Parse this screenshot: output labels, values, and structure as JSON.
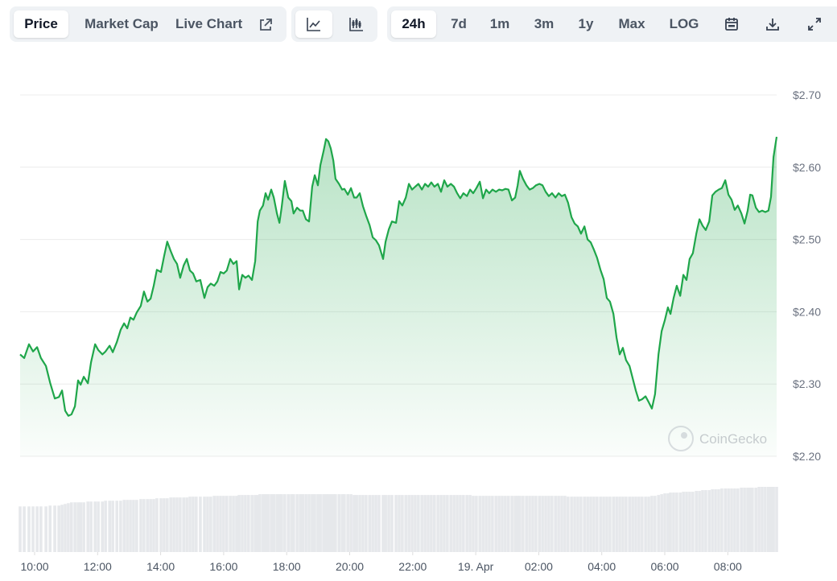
{
  "toolbar": {
    "views": [
      "Price",
      "Market Cap",
      "Live Chart"
    ],
    "ranges": [
      "24h",
      "7d",
      "1m",
      "3m",
      "1y",
      "Max",
      "LOG"
    ]
  },
  "chart_data": {
    "type": "line",
    "color": "#1fa64a",
    "grid": true,
    "watermark": "CoinGecko",
    "xlim": [
      9.54,
      33.55
    ],
    "xticks": [
      {
        "value": 10,
        "label": "10:00"
      },
      {
        "value": 12,
        "label": "12:00"
      },
      {
        "value": 14,
        "label": "14:00"
      },
      {
        "value": 16,
        "label": "16:00"
      },
      {
        "value": 18,
        "label": "18:00"
      },
      {
        "value": 20,
        "label": "20:00"
      },
      {
        "value": 22,
        "label": "22:00"
      },
      {
        "value": 24,
        "label": "19. Apr"
      },
      {
        "value": 26,
        "label": "02:00"
      },
      {
        "value": 28,
        "label": "04:00"
      },
      {
        "value": 30,
        "label": "06:00"
      },
      {
        "value": 32,
        "label": "08:00"
      }
    ],
    "ylim": [
      2.2,
      2.7
    ],
    "yticks": [
      {
        "value": 2.2,
        "label": "$2.20"
      },
      {
        "value": 2.3,
        "label": "$2.30"
      },
      {
        "value": 2.4,
        "label": "$2.40"
      },
      {
        "value": 2.5,
        "label": "$2.50"
      },
      {
        "value": 2.6,
        "label": "$2.60"
      },
      {
        "value": 2.7,
        "label": "$2.70"
      }
    ],
    "x": [
      9.54,
      9.67,
      9.82,
      9.95,
      10.08,
      10.2,
      10.36,
      10.49,
      10.64,
      10.77,
      10.87,
      10.97,
      11.07,
      11.17,
      11.28,
      11.38,
      11.46,
      11.56,
      11.69,
      11.79,
      11.92,
      12.02,
      12.15,
      12.25,
      12.38,
      12.48,
      12.61,
      12.73,
      12.84,
      12.94,
      13.04,
      13.14,
      13.24,
      13.37,
      13.47,
      13.58,
      13.68,
      13.78,
      13.88,
      14.01,
      14.11,
      14.21,
      14.32,
      14.42,
      14.52,
      14.62,
      14.73,
      14.83,
      14.93,
      15.03,
      15.13,
      15.26,
      15.39,
      15.49,
      15.59,
      15.7,
      15.8,
      15.9,
      16.0,
      16.1,
      16.21,
      16.31,
      16.41,
      16.49,
      16.59,
      16.69,
      16.79,
      16.9,
      17.0,
      17.08,
      17.15,
      17.25,
      17.33,
      17.41,
      17.51,
      17.59,
      17.69,
      17.77,
      17.84,
      17.94,
      18.05,
      18.15,
      18.22,
      18.33,
      18.43,
      18.51,
      18.61,
      18.71,
      18.81,
      18.89,
      18.99,
      19.07,
      19.17,
      19.25,
      19.32,
      19.4,
      19.48,
      19.55,
      19.66,
      19.76,
      19.83,
      19.94,
      20.04,
      20.14,
      20.22,
      20.32,
      20.42,
      20.52,
      20.63,
      20.73,
      20.83,
      20.93,
      21.06,
      21.14,
      21.24,
      21.34,
      21.47,
      21.57,
      21.67,
      21.78,
      21.88,
      21.98,
      22.08,
      22.18,
      22.29,
      22.39,
      22.49,
      22.59,
      22.69,
      22.8,
      22.9,
      23.0,
      23.1,
      23.21,
      23.31,
      23.41,
      23.51,
      23.61,
      23.72,
      23.82,
      23.92,
      24.02,
      24.13,
      24.23,
      24.33,
      24.43,
      24.53,
      24.64,
      24.74,
      24.84,
      24.94,
      25.04,
      25.15,
      25.25,
      25.33,
      25.4,
      25.5,
      25.61,
      25.71,
      25.81,
      25.91,
      26.02,
      26.12,
      26.22,
      26.32,
      26.42,
      26.53,
      26.63,
      26.73,
      26.83,
      26.93,
      27.04,
      27.14,
      27.24,
      27.34,
      27.45,
      27.55,
      27.65,
      27.75,
      27.85,
      27.96,
      28.06,
      28.16,
      28.26,
      28.37,
      28.47,
      28.57,
      28.67,
      28.77,
      28.88,
      28.98,
      29.08,
      29.18,
      29.28,
      29.39,
      29.49,
      29.59,
      29.69,
      29.8,
      29.9,
      30.0,
      30.1,
      30.18,
      30.28,
      30.38,
      30.49,
      30.59,
      30.69,
      30.79,
      30.89,
      31.0,
      31.1,
      31.2,
      31.3,
      31.41,
      31.51,
      31.61,
      31.71,
      31.81,
      31.92,
      32.02,
      32.12,
      32.22,
      32.32,
      32.43,
      32.53,
      32.63,
      32.71,
      32.78,
      32.89,
      32.99,
      33.09,
      33.19,
      33.29,
      33.37,
      33.45,
      33.55
    ],
    "values": [
      2.341,
      2.336,
      2.355,
      2.345,
      2.351,
      2.336,
      2.325,
      2.302,
      2.28,
      2.282,
      2.291,
      2.263,
      2.256,
      2.258,
      2.269,
      2.305,
      2.299,
      2.31,
      2.301,
      2.33,
      2.355,
      2.347,
      2.341,
      2.345,
      2.353,
      2.344,
      2.358,
      2.375,
      2.384,
      2.377,
      2.392,
      2.389,
      2.399,
      2.408,
      2.428,
      2.414,
      2.418,
      2.436,
      2.458,
      2.455,
      2.477,
      2.497,
      2.484,
      2.473,
      2.466,
      2.447,
      2.464,
      2.473,
      2.457,
      2.453,
      2.442,
      2.444,
      2.419,
      2.434,
      2.439,
      2.436,
      2.442,
      2.455,
      2.453,
      2.457,
      2.473,
      2.466,
      2.47,
      2.431,
      2.451,
      2.447,
      2.45,
      2.444,
      2.47,
      2.525,
      2.54,
      2.547,
      2.564,
      2.555,
      2.569,
      2.558,
      2.536,
      2.523,
      2.544,
      2.581,
      2.558,
      2.553,
      2.536,
      2.544,
      2.54,
      2.54,
      2.528,
      2.525,
      2.573,
      2.589,
      2.575,
      2.603,
      2.622,
      2.639,
      2.636,
      2.626,
      2.609,
      2.584,
      2.577,
      2.569,
      2.57,
      2.562,
      2.571,
      2.558,
      2.558,
      2.564,
      2.546,
      2.533,
      2.52,
      2.503,
      2.499,
      2.492,
      2.473,
      2.497,
      2.514,
      2.525,
      2.523,
      2.553,
      2.547,
      2.558,
      2.577,
      2.569,
      2.573,
      2.577,
      2.569,
      2.577,
      2.573,
      2.579,
      2.573,
      2.577,
      2.566,
      2.582,
      2.573,
      2.577,
      2.573,
      2.564,
      2.557,
      2.564,
      2.56,
      2.569,
      2.564,
      2.571,
      2.58,
      2.557,
      2.569,
      2.564,
      2.569,
      2.566,
      2.569,
      2.568,
      2.57,
      2.569,
      2.554,
      2.558,
      2.575,
      2.595,
      2.584,
      2.575,
      2.569,
      2.571,
      2.575,
      2.577,
      2.575,
      2.566,
      2.56,
      2.564,
      2.558,
      2.564,
      2.56,
      2.562,
      2.551,
      2.531,
      2.522,
      2.518,
      2.508,
      2.518,
      2.5,
      2.496,
      2.486,
      2.475,
      2.458,
      2.445,
      2.419,
      2.414,
      2.397,
      2.364,
      2.341,
      2.35,
      2.333,
      2.325,
      2.308,
      2.291,
      2.277,
      2.279,
      2.283,
      2.275,
      2.266,
      2.286,
      2.341,
      2.373,
      2.388,
      2.406,
      2.397,
      2.419,
      2.436,
      2.422,
      2.451,
      2.444,
      2.473,
      2.481,
      2.508,
      2.528,
      2.519,
      2.513,
      2.525,
      2.561,
      2.566,
      2.569,
      2.571,
      2.582,
      2.562,
      2.555,
      2.541,
      2.547,
      2.536,
      2.522,
      2.54,
      2.562,
      2.561,
      2.544,
      2.538,
      2.54,
      2.538,
      2.54,
      2.559,
      2.614,
      2.642
    ],
    "volume": {
      "color": "#e6e8eb",
      "ylim": [
        0,
        80
      ],
      "values": [
        56,
        56,
        56,
        56,
        56,
        56,
        56,
        57,
        57,
        57,
        58,
        59,
        60,
        61,
        61,
        61,
        61,
        61,
        62,
        62,
        62,
        62,
        62,
        63,
        63,
        63,
        63,
        63,
        64,
        64,
        64,
        64,
        64,
        65,
        65,
        65,
        65,
        65,
        66,
        66,
        66,
        66,
        67,
        67,
        67,
        67,
        67,
        67,
        68,
        68,
        68,
        68,
        68,
        68,
        68,
        69,
        69,
        69,
        69,
        69,
        69,
        69,
        69,
        70,
        70,
        70,
        70,
        70,
        70,
        70,
        71,
        71,
        71,
        71,
        71,
        71,
        71,
        71,
        71,
        71,
        71,
        71,
        71,
        71,
        71,
        71,
        71,
        71,
        71,
        71,
        71,
        71,
        71,
        71,
        71,
        71,
        71,
        71,
        71,
        71,
        71,
        71,
        71,
        70,
        70,
        70,
        70,
        70,
        70,
        70,
        70,
        70,
        70,
        70,
        70,
        70,
        70,
        70,
        70,
        70,
        70,
        70,
        70,
        70,
        70,
        70,
        70,
        70,
        70,
        70,
        70,
        70,
        70,
        70,
        70,
        70,
        70,
        70,
        70,
        70,
        69,
        69,
        69,
        69,
        69,
        69,
        69,
        69,
        69,
        69,
        69,
        69,
        69,
        69,
        69,
        69,
        69,
        69,
        69,
        69,
        69,
        69,
        69,
        69,
        69,
        69,
        69,
        69,
        69,
        69,
        68,
        68,
        68,
        68,
        68,
        68,
        68,
        68,
        68,
        68,
        68,
        68,
        68,
        68,
        68,
        68,
        68,
        68,
        68,
        68,
        68,
        68,
        68,
        68,
        68,
        68,
        69,
        69,
        70,
        71,
        72,
        72,
        73,
        73,
        73,
        73,
        74,
        74,
        74,
        74,
        75,
        75,
        76,
        76,
        76,
        77,
        77,
        77,
        78,
        78,
        78,
        78,
        78,
        78,
        79,
        79,
        79,
        79,
        79,
        79,
        80,
        80,
        80,
        80,
        80,
        80,
        80
      ]
    }
  }
}
